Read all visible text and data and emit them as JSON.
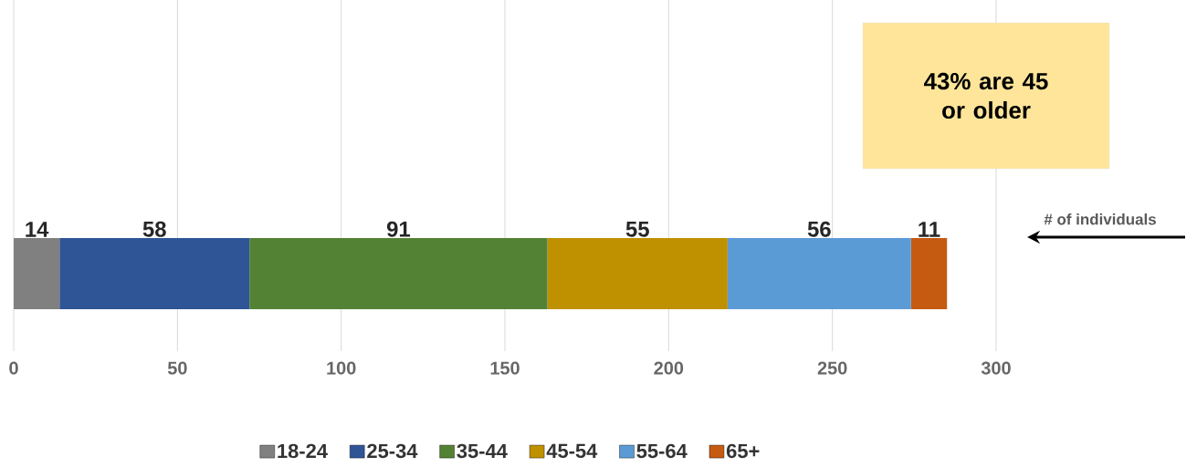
{
  "chart_data": {
    "type": "bar",
    "orientation": "horizontal",
    "stacked": true,
    "categories": [
      null
    ],
    "series": [
      {
        "name": "18-24",
        "color": "#808080",
        "values": [
          14
        ]
      },
      {
        "name": "25-34",
        "color": "#2f5597",
        "values": [
          58
        ]
      },
      {
        "name": "35-44",
        "color": "#548235",
        "values": [
          91
        ]
      },
      {
        "name": "45-54",
        "color": "#bf9000",
        "values": [
          55
        ]
      },
      {
        "name": "55-64",
        "color": "#5b9bd5",
        "values": [
          56
        ]
      },
      {
        "name": "65+",
        "color": "#c55a11",
        "values": [
          11
        ]
      }
    ],
    "xlim": [
      0,
      300
    ],
    "xticks": [
      0,
      50,
      100,
      150,
      200,
      250,
      300
    ],
    "grid": "x",
    "legend": "bottom",
    "data_labels": true,
    "annotations": [
      "43% are 45 or older",
      "# of individuals"
    ]
  }
}
